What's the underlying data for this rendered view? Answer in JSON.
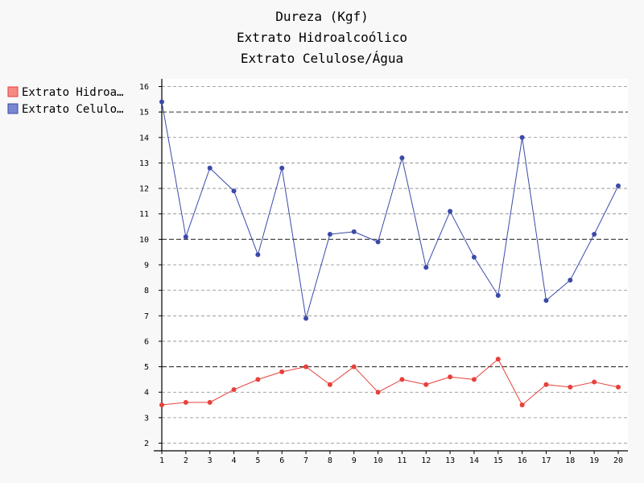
{
  "chart_data": {
    "type": "line",
    "title": [
      "Dureza (Kgf)",
      "Extrato Hidroalcoólico",
      "Extrato Celulose/Água"
    ],
    "xlabel": "",
    "ylabel": "",
    "categories": [
      "1",
      "2",
      "3",
      "4",
      "5",
      "6",
      "7",
      "8",
      "9",
      "10",
      "11",
      "12",
      "13",
      "14",
      "15",
      "16",
      "17",
      "18",
      "19",
      "20"
    ],
    "ylim": [
      1.7,
      16.3
    ],
    "yticks": [
      "2",
      "3",
      "4",
      "5",
      "6",
      "7",
      "8",
      "9",
      "10",
      "11",
      "12",
      "13",
      "14",
      "15",
      "16"
    ],
    "grid": true,
    "legend_position": "left",
    "series": [
      {
        "name": "Extrato Hidroalcoólico",
        "legend_label": "Extrato Hidroa…",
        "color": "#e8403a",
        "values": [
          3.5,
          3.6,
          3.6,
          4.1,
          4.5,
          4.8,
          5.0,
          4.3,
          5.0,
          4.0,
          4.5,
          4.3,
          4.6,
          4.5,
          5.3,
          3.5,
          4.3,
          4.2,
          4.4,
          4.2
        ]
      },
      {
        "name": "Extrato Celulose/Água",
        "legend_label": "Extrato Celulo…",
        "color": "#3a4aa8",
        "values": [
          15.4,
          10.1,
          12.8,
          11.9,
          9.4,
          12.8,
          6.9,
          10.2,
          10.3,
          9.9,
          13.2,
          8.9,
          11.1,
          9.3,
          7.8,
          14.0,
          7.6,
          8.4,
          10.2,
          12.1
        ]
      }
    ]
  }
}
